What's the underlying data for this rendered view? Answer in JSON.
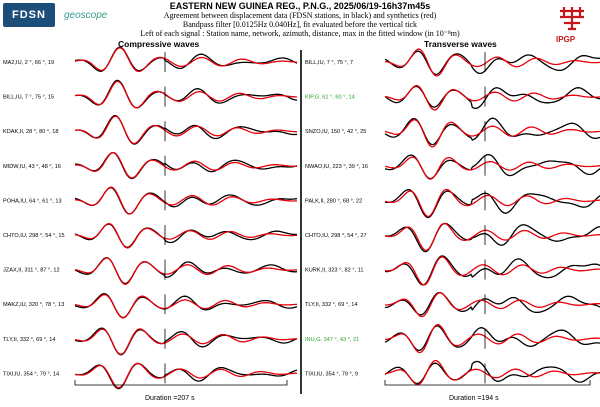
{
  "header": {
    "title": "EASTERN NEW GUINEA REG., P.N.G., 2025/06/19-16h37m45s",
    "line2": "Agreement between displacement data (FDSN stations, in black) and synthetics (red)",
    "line3": "Bandpass filter [0.0125Hz 0.040Hz], fit evaluated before the vertical tick",
    "line4": "Left of each signal : Station name, network, azimuth, distance, max in the fitted window (in 10⁻⁸m)"
  },
  "logos": {
    "left1": "FDSN",
    "left2": "geoscope",
    "right": "IPGP"
  },
  "colors": {
    "data": "#000000",
    "synthetic": "#e8000b",
    "highlight": "#2ca02c"
  },
  "chart_data": [
    {
      "type": "line",
      "title": "Compressive waves",
      "duration_label": "Duration =207 s",
      "traces": [
        {
          "label": "MA2,IU, 2 °, 66 °, 19",
          "highlight": false
        },
        {
          "label": "BILL,IU, 7 °, 75 °, 15",
          "highlight": false
        },
        {
          "label": "KDAK,II, 28 °, 80 °, 18",
          "highlight": false
        },
        {
          "label": "MIDW,IU, 43 °, 48 °, 16",
          "highlight": false
        },
        {
          "label": "POHA,IU, 64 °, 61 °, 13",
          "highlight": false
        },
        {
          "label": "CHTO,IU, 298 °, 54 °, 15",
          "highlight": false
        },
        {
          "label": "JZAX,II, 311 °, 87 °, 12",
          "highlight": false
        },
        {
          "label": "MAKZ,IU, 320 °, 78 °, 13",
          "highlight": false
        },
        {
          "label": "TLY,II, 332 °, 69 °, 14",
          "highlight": false
        },
        {
          "label": "TIXI,IU, 354 °, 79 °, 14",
          "highlight": false
        }
      ]
    },
    {
      "type": "line",
      "title": "Transverse waves",
      "duration_label": "Duration =194 s",
      "traces": [
        {
          "label": "BILL,IU, 7 °, 75 °, 7",
          "highlight": false
        },
        {
          "label": "KIP,G, 61 °, 60 °, 14",
          "highlight": true
        },
        {
          "label": "SNZO,IU, 150 °, 42 °, 25",
          "highlight": false
        },
        {
          "label": "NWAO,IU, 223 °, 39 °, 16",
          "highlight": false
        },
        {
          "label": "PALK,II, 280 °, 68 °, 22",
          "highlight": false
        },
        {
          "label": "CHTO,IU, 298 °, 54 °, 27",
          "highlight": false
        },
        {
          "label": "KURK,II, 323 °, 82 °, 11",
          "highlight": false
        },
        {
          "label": "TLY,II, 332 °, 69 °, 14",
          "highlight": false
        },
        {
          "label": "INU,G, 347 °, 43 °, 21",
          "highlight": true
        },
        {
          "label": "TIXI,IU, 354 °, 79 °, 9",
          "highlight": false
        }
      ]
    }
  ]
}
